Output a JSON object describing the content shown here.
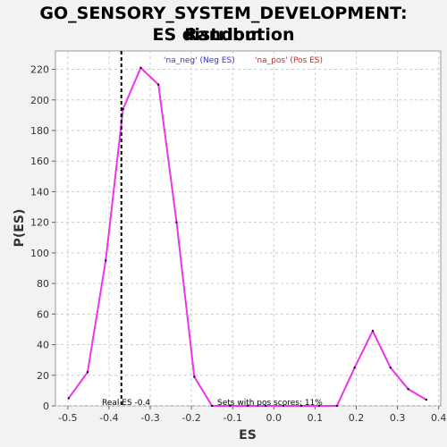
{
  "chart_data": {
    "type": "line",
    "title_line1": "GO_SENSORY_SYSTEM_DEVELOPMENT: Random",
    "title_line2": "ES distribution",
    "xlabel": "ES",
    "ylabel": "P(ES)",
    "xlim": [
      -0.53,
      0.405
    ],
    "ylim": [
      0,
      232
    ],
    "x_ticks": [
      -0.5,
      -0.4,
      -0.3,
      -0.2,
      -0.1,
      0.0,
      0.1,
      0.2,
      0.3,
      0.4
    ],
    "x_tick_labels": [
      "-0.5",
      "-0.4",
      "-0.3",
      "-0.2",
      "-0.1",
      "0.0",
      "0.1",
      "0.2",
      "0.3",
      "0.4"
    ],
    "y_ticks": [
      0,
      20,
      40,
      60,
      80,
      100,
      120,
      140,
      160,
      180,
      200,
      220
    ],
    "y_tick_labels": [
      "0",
      "20",
      "40",
      "60",
      "80",
      "100",
      "120",
      "140",
      "160",
      "180",
      "200",
      "220"
    ],
    "grid": true,
    "legend": [
      {
        "label": "'na_neg' (Neg ES)",
        "color": "#3333cc"
      },
      {
        "label": "'na_pos' (Pos ES)",
        "color": "#dd2222"
      }
    ],
    "series": [
      {
        "color": "#ee33ee",
        "x": [
          -0.498,
          -0.452,
          -0.408,
          -0.366,
          -0.323,
          -0.28,
          -0.236,
          -0.193,
          -0.15,
          -0.106,
          -0.063,
          -0.02,
          0.023,
          0.067,
          0.11,
          0.153,
          0.196,
          0.24,
          0.283,
          0.326,
          0.37
        ],
        "y": [
          5,
          22,
          95,
          194,
          221,
          210,
          120,
          19,
          0,
          0,
          0,
          0,
          0,
          0,
          0,
          0,
          25,
          49,
          25,
          11,
          4
        ]
      }
    ],
    "real_es": -0.37,
    "annotations": {
      "real_es": "Real ES -0.4",
      "pos_scores": "Sets with pos scores: 11%"
    },
    "colors": {
      "line": "#ee33ee",
      "marker": "#000000",
      "real_es_line": "#000000",
      "grid": "#cccccc",
      "plot_bg": "#ffffff"
    }
  }
}
